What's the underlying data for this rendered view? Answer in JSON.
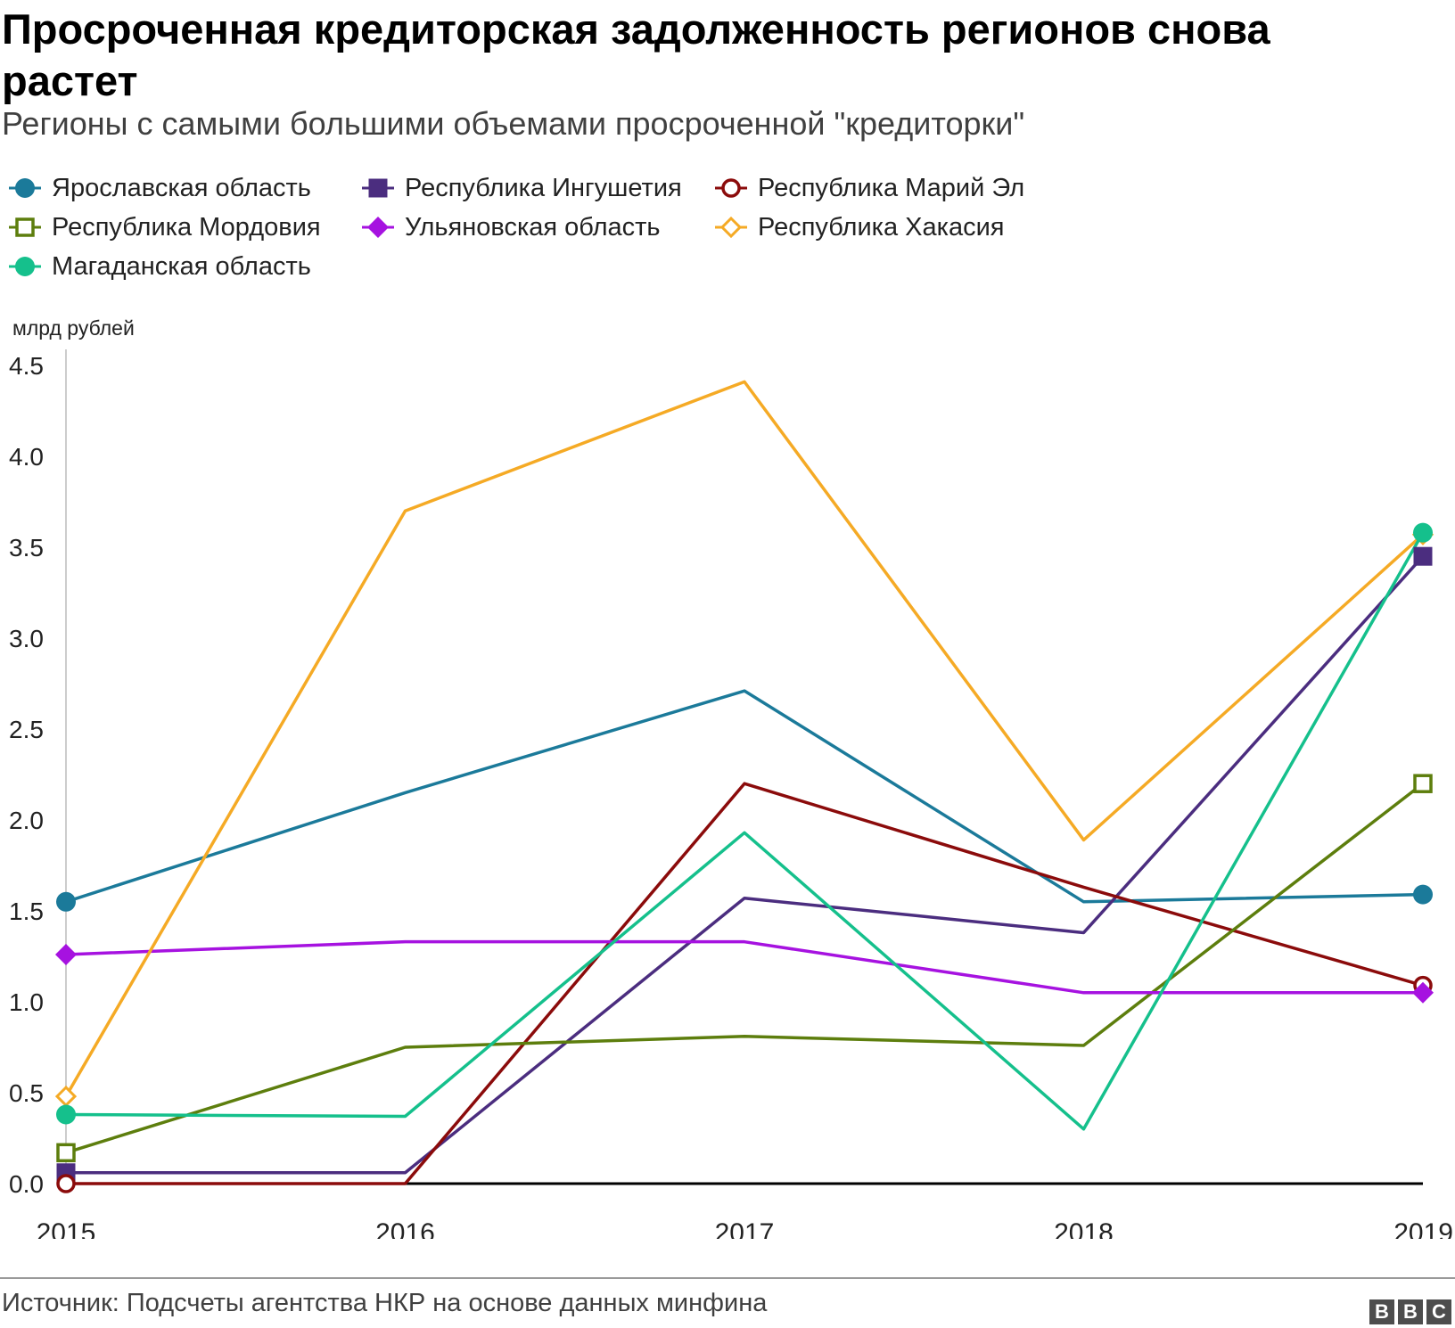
{
  "title": "Просроченная кредиторская задолженность регионов снова растет",
  "subtitle": "Регионы с самыми большими объемами просроченной \"кредиторки\"",
  "source": "Источник: Подсчеты агентства НКР на основе данных минфина",
  "logo": {
    "letters": [
      "B",
      "B",
      "C"
    ],
    "color": "#4d4d4d"
  },
  "chart_data": {
    "type": "line",
    "title": "Просроченная кредиторская задолженность регионов снова растет",
    "subtitle": "Регионы с самыми большими объемами просроченной \"кредиторки\"",
    "x": [
      2015,
      2016,
      2017,
      2018,
      2019
    ],
    "xlabel": "",
    "ylabel": "млрд рублей",
    "ylim": [
      0,
      4.5
    ],
    "yticks": [
      "0.0",
      "0.5",
      "1.0",
      "1.5",
      "2.0",
      "2.5",
      "3.0",
      "3.5",
      "4.0",
      "4.5"
    ],
    "grid": false,
    "legend_position": "top",
    "series": [
      {
        "name": "Ярославская область",
        "color": "#1b7a9a",
        "marker": "circle-filled",
        "values": [
          1.55,
          2.15,
          2.71,
          1.55,
          1.59
        ]
      },
      {
        "name": "Республика Ингушетия",
        "color": "#4b2d7f",
        "marker": "square-filled",
        "values": [
          0.06,
          0.06,
          1.57,
          1.38,
          3.45
        ]
      },
      {
        "name": "Республика Марий Эл",
        "color": "#8b0b0b",
        "marker": "circle-open",
        "values": [
          0.0,
          0.0,
          2.2,
          1.63,
          1.09
        ]
      },
      {
        "name": "Республика Мордовия",
        "color": "#5d7e0d",
        "marker": "square-open",
        "values": [
          0.17,
          0.75,
          0.81,
          0.76,
          2.2
        ]
      },
      {
        "name": "Ульяновская область",
        "color": "#a612e0",
        "marker": "diamond-filled",
        "values": [
          1.26,
          1.33,
          1.33,
          1.05,
          1.05
        ]
      },
      {
        "name": "Республика Хакасия",
        "color": "#f5aa25",
        "marker": "diamond-open",
        "values": [
          0.48,
          3.7,
          4.41,
          1.89,
          3.57
        ]
      },
      {
        "name": "Магаданская область",
        "color": "#15c08c",
        "marker": "circle-filled",
        "values": [
          0.38,
          0.37,
          1.93,
          0.3,
          3.58
        ]
      }
    ]
  }
}
